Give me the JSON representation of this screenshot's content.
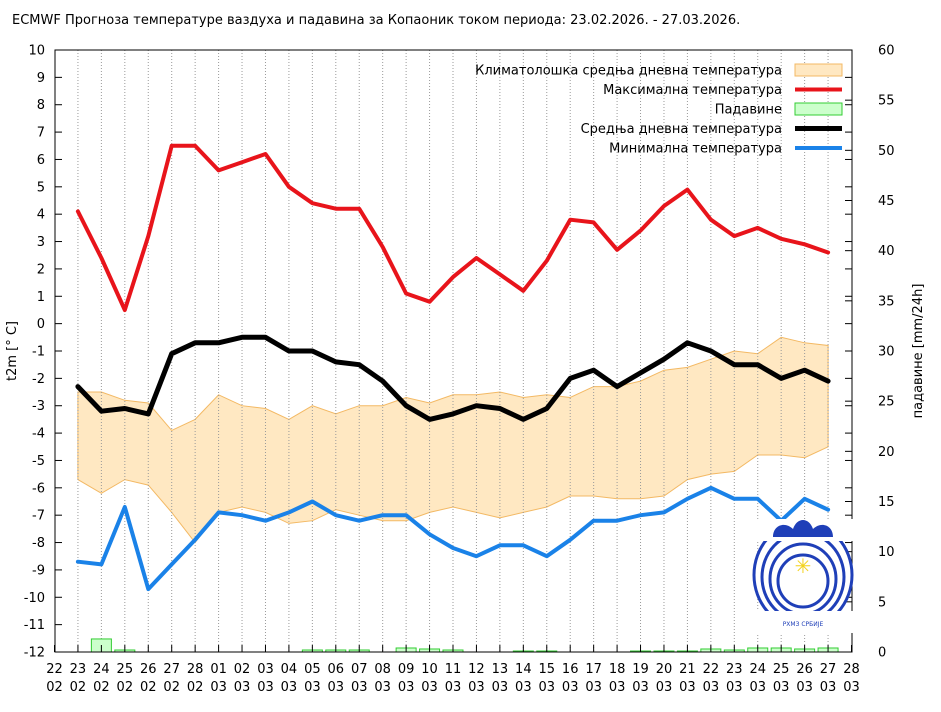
{
  "chart_data": {
    "type": "line",
    "title": "ECMWF Прогноза температуре ваздуха и падавина за Копаоник током периода: 23.02.2026. - 27.03.2026.",
    "ylabel": "t2m [° C]",
    "y2label": "падавине [mm/24h]",
    "ylim": [
      -12,
      10
    ],
    "y2lim": [
      0,
      60
    ],
    "yticks": [
      "-12",
      "-11",
      "-10",
      "-9",
      "-8",
      "-7",
      "-6",
      "-5",
      "-4",
      "-3",
      "-2",
      "-1",
      "0",
      "1",
      "2",
      "3",
      "4",
      "5",
      "6",
      "7",
      "8",
      "9",
      "10"
    ],
    "y2ticks": [
      "0",
      "5",
      "10",
      "15",
      "20",
      "25",
      "30",
      "35",
      "40",
      "45",
      "50",
      "55",
      "60"
    ],
    "x_days": [
      "22",
      "23",
      "24",
      "25",
      "26",
      "27",
      "28",
      "01",
      "02",
      "03",
      "04",
      "05",
      "06",
      "07",
      "08",
      "09",
      "10",
      "11",
      "12",
      "13",
      "14",
      "15",
      "16",
      "17",
      "18",
      "19",
      "20",
      "21",
      "22",
      "23",
      "24",
      "25",
      "26",
      "27",
      "28"
    ],
    "x_months": [
      "02",
      "02",
      "02",
      "02",
      "02",
      "02",
      "02",
      "03",
      "03",
      "03",
      "03",
      "03",
      "03",
      "03",
      "03",
      "03",
      "03",
      "03",
      "03",
      "03",
      "03",
      "03",
      "03",
      "03",
      "03",
      "03",
      "03",
      "03",
      "03",
      "03",
      "03",
      "03",
      "03",
      "03",
      "03"
    ],
    "grid": "vertical dotted",
    "legend_position": "top-right",
    "colors": {
      "climatology_fill": "#ffe8c2",
      "climatology_edge": "#f3b964",
      "max": "#e8141b",
      "mean": "#000000",
      "min": "#1a82e8",
      "precip_fill": "#ccffcc",
      "precip_edge": "#33cc33"
    },
    "legend": [
      {
        "key": "clim",
        "label": "Климатолошка средња дневна температура"
      },
      {
        "key": "max",
        "label": "Максимална температура"
      },
      {
        "key": "precip",
        "label": "Падавине"
      },
      {
        "key": "mean",
        "label": "Средња дневна температура"
      },
      {
        "key": "min",
        "label": "Минимална температура"
      }
    ],
    "series": [
      {
        "name": "Максимална температура",
        "key": "max",
        "x_start": 1,
        "values": [
          4.1,
          2.4,
          0.5,
          3.2,
          6.5,
          6.5,
          5.6,
          5.9,
          6.2,
          5.0,
          4.4,
          4.2,
          4.2,
          2.8,
          1.1,
          0.8,
          1.7,
          2.4,
          1.8,
          1.2,
          2.3,
          3.8,
          3.7,
          2.7,
          3.4,
          4.3,
          4.9,
          3.8,
          3.2,
          3.5,
          3.1,
          2.9,
          2.6
        ]
      },
      {
        "name": "Средња дневна температура",
        "key": "mean",
        "x_start": 1,
        "values": [
          -2.3,
          -3.2,
          -3.1,
          -3.3,
          -1.1,
          -0.7,
          -0.7,
          -0.5,
          -0.5,
          -1.0,
          -1.0,
          -1.4,
          -1.5,
          -2.1,
          -3.0,
          -3.5,
          -3.3,
          -3.0,
          -3.1,
          -3.5,
          -3.1,
          -2.0,
          -1.7,
          -2.3,
          -1.8,
          -1.3,
          -0.7,
          -1.0,
          -1.5,
          -1.5,
          -2.0,
          -1.7,
          -2.1
        ]
      },
      {
        "name": "Минимална температура",
        "key": "min",
        "x_start": 1,
        "values": [
          -8.7,
          -8.8,
          -6.7,
          -9.7,
          -8.8,
          -7.9,
          -6.9,
          -7.0,
          -7.2,
          -6.9,
          -6.5,
          -7.0,
          -7.2,
          -7.0,
          -7.0,
          -7.7,
          -8.2,
          -8.5,
          -8.1,
          -8.1,
          -8.5,
          -7.9,
          -7.2,
          -7.2,
          -7.0,
          -6.9,
          -6.4,
          -6.0,
          -6.4,
          -6.4,
          -7.2,
          -6.4,
          -6.8
        ]
      },
      {
        "name": "Климатолошка средња дневна температура",
        "key": "clim",
        "x_start": 1,
        "upper": [
          -2.5,
          -2.5,
          -2.8,
          -2.9,
          -3.9,
          -3.5,
          -2.6,
          -3.0,
          -3.1,
          -3.5,
          -3.0,
          -3.3,
          -3.0,
          -3.0,
          -2.7,
          -2.9,
          -2.6,
          -2.6,
          -2.5,
          -2.7,
          -2.6,
          -2.7,
          -2.3,
          -2.3,
          -2.1,
          -1.7,
          -1.6,
          -1.3,
          -1.0,
          -1.1,
          -0.5,
          -0.7,
          -0.8
        ],
        "lower": [
          -5.7,
          -6.2,
          -5.7,
          -5.9,
          -6.9,
          -8.0,
          -6.9,
          -6.7,
          -6.9,
          -7.3,
          -7.2,
          -6.8,
          -7.0,
          -7.2,
          -7.2,
          -6.9,
          -6.7,
          -6.9,
          -7.1,
          -6.9,
          -6.7,
          -6.3,
          -6.3,
          -6.4,
          -6.4,
          -6.3,
          -5.7,
          -5.5,
          -5.4,
          -4.8,
          -4.8,
          -4.9,
          -4.5
        ]
      },
      {
        "name": "Падавине",
        "key": "precip",
        "x_start": 1,
        "values": [
          0,
          1.3,
          0.2,
          0,
          0,
          0,
          0,
          0,
          0,
          0,
          0.2,
          0.2,
          0.2,
          0,
          0.4,
          0.3,
          0.2,
          0,
          0,
          0.1,
          0.1,
          0,
          0,
          0,
          0.1,
          0.1,
          0.1,
          0.3,
          0.2,
          0.4,
          0.4,
          0.3,
          0.4
        ]
      }
    ]
  }
}
